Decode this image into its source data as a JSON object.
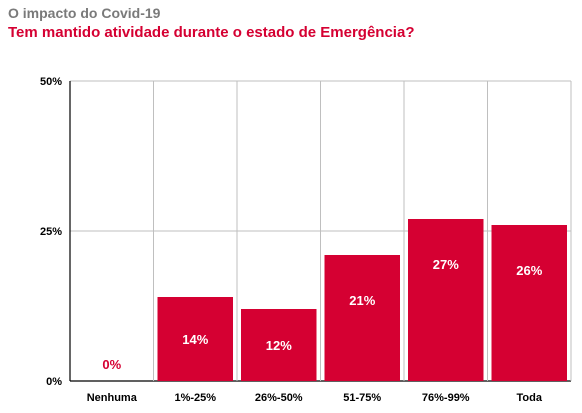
{
  "header": {
    "title": "O impacto do Covid-19",
    "subtitle": "Tem mantido atividade durante o estado  de Emergência?"
  },
  "colors": {
    "bar": "#d50032",
    "title": "#7a7a7a",
    "subtitle": "#d50032",
    "zero_label": "#d50032",
    "bar_label": "#ffffff",
    "grid": "#bfbfbf"
  },
  "chart_data": {
    "type": "bar",
    "title": "Tem mantido atividade durante o estado  de Emergência?",
    "xlabel": "",
    "ylabel": "",
    "categories": [
      "Nenhuma",
      "1%-25%",
      "26%-50%",
      "51-75%",
      "76%-99%",
      "Toda"
    ],
    "values": [
      0,
      14,
      12,
      21,
      27,
      26
    ],
    "value_labels": [
      "0%",
      "14%",
      "12%",
      "21%",
      "27%",
      "26%"
    ],
    "ylim": [
      0,
      50
    ],
    "yticks": [
      0,
      25,
      50
    ],
    "ytick_labels": [
      "0%",
      "25%",
      "50%"
    ],
    "grid": true,
    "legend": "none"
  }
}
